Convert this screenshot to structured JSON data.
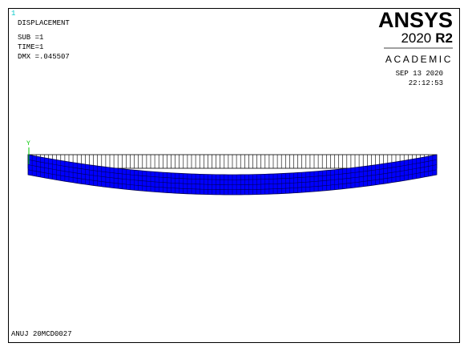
{
  "window_number": "1",
  "info": {
    "title": "DISPLACEMENT",
    "lines": [
      "SUB =1",
      "TIME=1",
      "DMX =.045507"
    ]
  },
  "logo": {
    "name": "ANSYS",
    "version": "2020",
    "release": "R2",
    "edition": "ACADEMIC"
  },
  "date": "SEP 13 2020",
  "time": "22:12:53",
  "triad_label": "Y",
  "footer": "ANUJ 20MCD0027"
}
